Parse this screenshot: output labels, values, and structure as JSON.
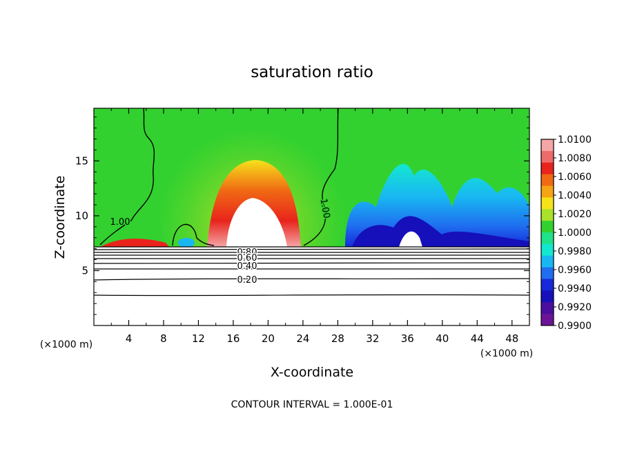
{
  "chart_data": {
    "type": "heatmap",
    "title": "saturation ratio",
    "xlabel": "X-coordinate",
    "ylabel": "Z-coordinate",
    "x_unit": "(×1000 m)",
    "x_unit_right": "(×1000 m)",
    "footer": "CONTOUR INTERVAL = 1.000E-01",
    "xlim": [
      0,
      50
    ],
    "ylim": [
      0,
      19.8
    ],
    "xticks": [
      "4",
      "8",
      "12",
      "16",
      "20",
      "24",
      "28",
      "32",
      "36",
      "40",
      "44",
      "48"
    ],
    "yticks": [
      "5",
      "10",
      "15"
    ],
    "colorbar": {
      "min": 0.99,
      "max": 1.01,
      "labels": [
        "1.0100",
        "1.0080",
        "1.0060",
        "1.0040",
        "1.0020",
        "1.0000",
        "0.9980",
        "0.9960",
        "0.9940",
        "0.9920",
        "0.9900"
      ],
      "colors": [
        "#f4a6a6",
        "#ee6b6b",
        "#e8241c",
        "#f06a14",
        "#f5a413",
        "#f6e21a",
        "#a8e22a",
        "#33d12f",
        "#1fe28a",
        "#14e7d0",
        "#18b7f2",
        "#1f6ef0",
        "#1729d9",
        "#1510b9",
        "#4a0fa0",
        "#6b1596"
      ]
    },
    "contour_labels": [
      "1.00",
      "1.00",
      "0.80",
      "0.60",
      "0.40",
      "0.20"
    ],
    "contour_levels": [
      0.1,
      0.2,
      0.3,
      0.4,
      0.5,
      0.6,
      0.7,
      0.8,
      0.9,
      1.0
    ]
  }
}
